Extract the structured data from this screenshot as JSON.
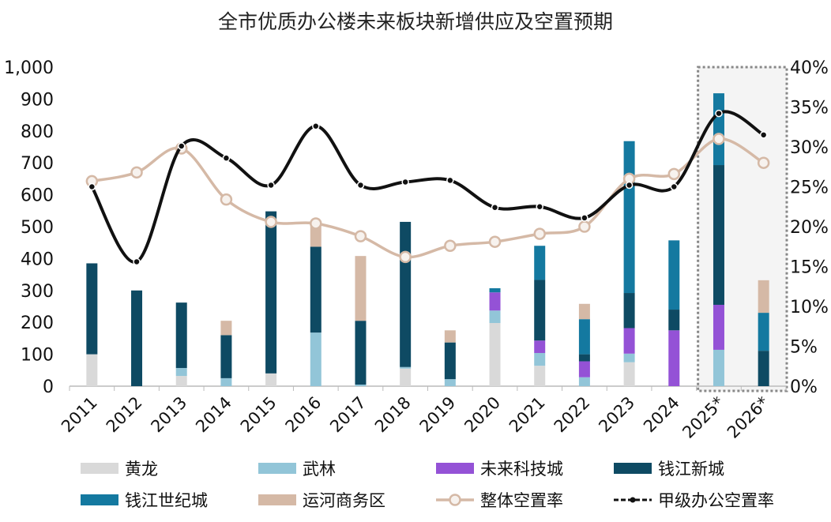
{
  "chart_data": {
    "type": "bar",
    "stacked": true,
    "title": "全市优质办公楼未来板块新增供应及空置预期",
    "categories": [
      "2011",
      "2012",
      "2013",
      "2014",
      "2015",
      "2016",
      "2017",
      "2018",
      "2019",
      "2020",
      "2021",
      "2022",
      "2023",
      "2024",
      "2025*",
      "2026*"
    ],
    "forecast_categories": [
      "2025*",
      "2026*"
    ],
    "y_left": {
      "range": [
        0,
        1000
      ],
      "ticks": [
        "0",
        "100",
        "200",
        "300",
        "400",
        "500",
        "600",
        "700",
        "800",
        "900",
        "1,000"
      ]
    },
    "y_right": {
      "range": [
        0,
        40
      ],
      "unit": "%",
      "ticks": [
        "0%",
        "5%",
        "10%",
        "15%",
        "20%",
        "25%",
        "30%",
        "35%",
        "40%"
      ]
    },
    "grid": false,
    "legend_position": "bottom",
    "series": [
      {
        "name": "黄龙",
        "type": "bar",
        "color": "#d9d9d9",
        "values": [
          100,
          0,
          32,
          0,
          40,
          0,
          0,
          55,
          0,
          198,
          64,
          0,
          75,
          0,
          0,
          0
        ]
      },
      {
        "name": "武林",
        "type": "bar",
        "color": "#92c5d8",
        "values": [
          0,
          0,
          25,
          25,
          0,
          168,
          5,
          5,
          22,
          39,
          40,
          28,
          27,
          0,
          114,
          0
        ]
      },
      {
        "name": "未来科技城",
        "type": "bar",
        "color": "#9452d6",
        "values": [
          0,
          0,
          0,
          0,
          0,
          0,
          0,
          0,
          0,
          57,
          39,
          50,
          80,
          175,
          141,
          0
        ]
      },
      {
        "name": "钱江新城",
        "type": "bar",
        "color": "#0e4a63",
        "values": [
          285,
          300,
          205,
          135,
          508,
          269,
          200,
          455,
          115,
          0,
          190,
          22,
          110,
          65,
          438,
          111
        ]
      },
      {
        "name": "钱江世纪城",
        "type": "bar",
        "color": "#1479a0",
        "values": [
          0,
          0,
          0,
          0,
          0,
          0,
          0,
          0,
          0,
          13,
          107,
          110,
          476,
          217,
          225,
          119
        ]
      },
      {
        "name": "运河商务区",
        "type": "bar",
        "color": "#d5b9a6",
        "values": [
          0,
          0,
          0,
          45,
          0,
          78,
          203,
          0,
          38,
          0,
          0,
          48,
          0,
          0,
          0,
          102
        ]
      },
      {
        "name": "整体空置率",
        "type": "line",
        "axis": "right",
        "color": "#d5b9a6",
        "values": [
          25.7,
          26.8,
          29.8,
          23.4,
          20.6,
          20.4,
          18.8,
          16.2,
          17.6,
          18.1,
          19.1,
          20.0,
          26.0,
          26.6,
          31.0,
          28.0
        ]
      },
      {
        "name": "甲级办公空置率",
        "type": "line",
        "axis": "right",
        "color": "#111111",
        "smooth": true,
        "values": [
          25.0,
          15.6,
          30.1,
          28.6,
          25.2,
          32.6,
          25.2,
          25.6,
          25.8,
          22.4,
          22.5,
          21.1,
          25.2,
          25.0,
          34.2,
          31.5
        ]
      }
    ]
  }
}
